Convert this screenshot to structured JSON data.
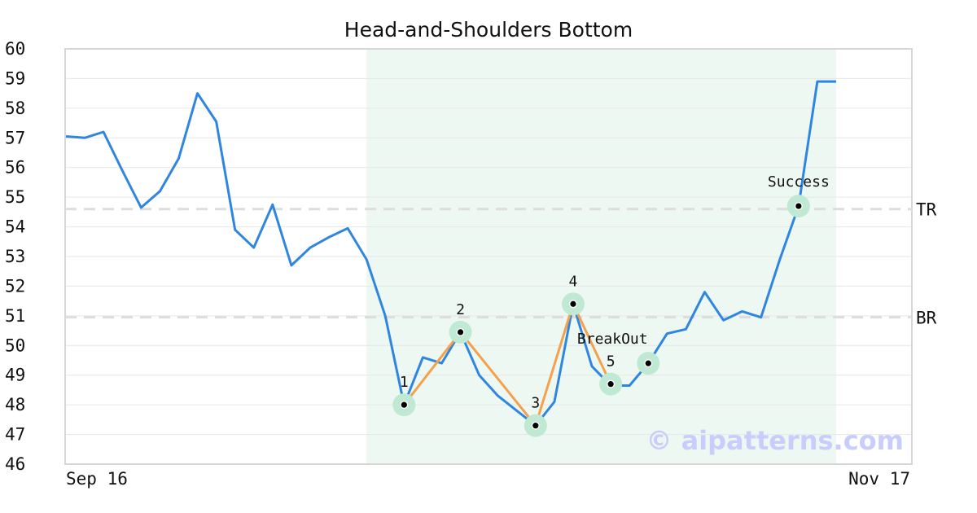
{
  "chart_data": {
    "type": "line",
    "title": "Head-and-Shoulders Bottom",
    "xlabel": "",
    "ylabel": "",
    "ylim": [
      46,
      60
    ],
    "yticks": [
      46,
      47,
      48,
      49,
      50,
      51,
      52,
      53,
      54,
      55,
      56,
      57,
      58,
      59,
      60
    ],
    "x_tick_labels": [
      {
        "index": 0,
        "label": "Sep 16"
      },
      {
        "index": 41,
        "label": "Nov 17"
      }
    ],
    "grid": true,
    "colors": {
      "price_line": "#2f86e0",
      "pattern_line": "#f5a04a",
      "marker_halo": "#bfe9d2",
      "shade": "#eef8f3",
      "ref_line": "#dddddd",
      "watermark": "#c9cdfb"
    },
    "series": [
      {
        "values": [
          57.05,
          57.0,
          57.2,
          55.9,
          54.65,
          55.2,
          56.3,
          58.5,
          57.55,
          53.9,
          53.3,
          54.75,
          52.7,
          53.3,
          53.65,
          53.95,
          52.9,
          51.0,
          48.0,
          49.6,
          49.4,
          50.45,
          49.0,
          48.3,
          47.8,
          47.3,
          48.1,
          51.4,
          49.3,
          48.65,
          48.65,
          49.4,
          50.4,
          50.55,
          51.8,
          50.85,
          51.15,
          50.95,
          52.9,
          54.7,
          58.9,
          58.9
        ]
      }
    ],
    "pattern_points": [
      {
        "index": 18,
        "value": 48.0,
        "label": "1"
      },
      {
        "index": 21,
        "value": 50.45,
        "label": "2"
      },
      {
        "index": 25,
        "value": 47.3,
        "label": "3"
      },
      {
        "index": 27,
        "value": 51.4,
        "label": "4"
      },
      {
        "index": 29,
        "value": 48.7,
        "label": "5"
      }
    ],
    "events": [
      {
        "index": 31,
        "value": 49.4,
        "label": "BreakOut"
      },
      {
        "index": 39,
        "value": 54.7,
        "label": "Success"
      }
    ],
    "reference_lines": [
      {
        "value": 54.6,
        "label": "TR"
      },
      {
        "value": 50.95,
        "label": "BR"
      }
    ],
    "shaded_region": {
      "start_index": 16,
      "end_index": 41
    },
    "watermark": "© aipatterns.com"
  }
}
